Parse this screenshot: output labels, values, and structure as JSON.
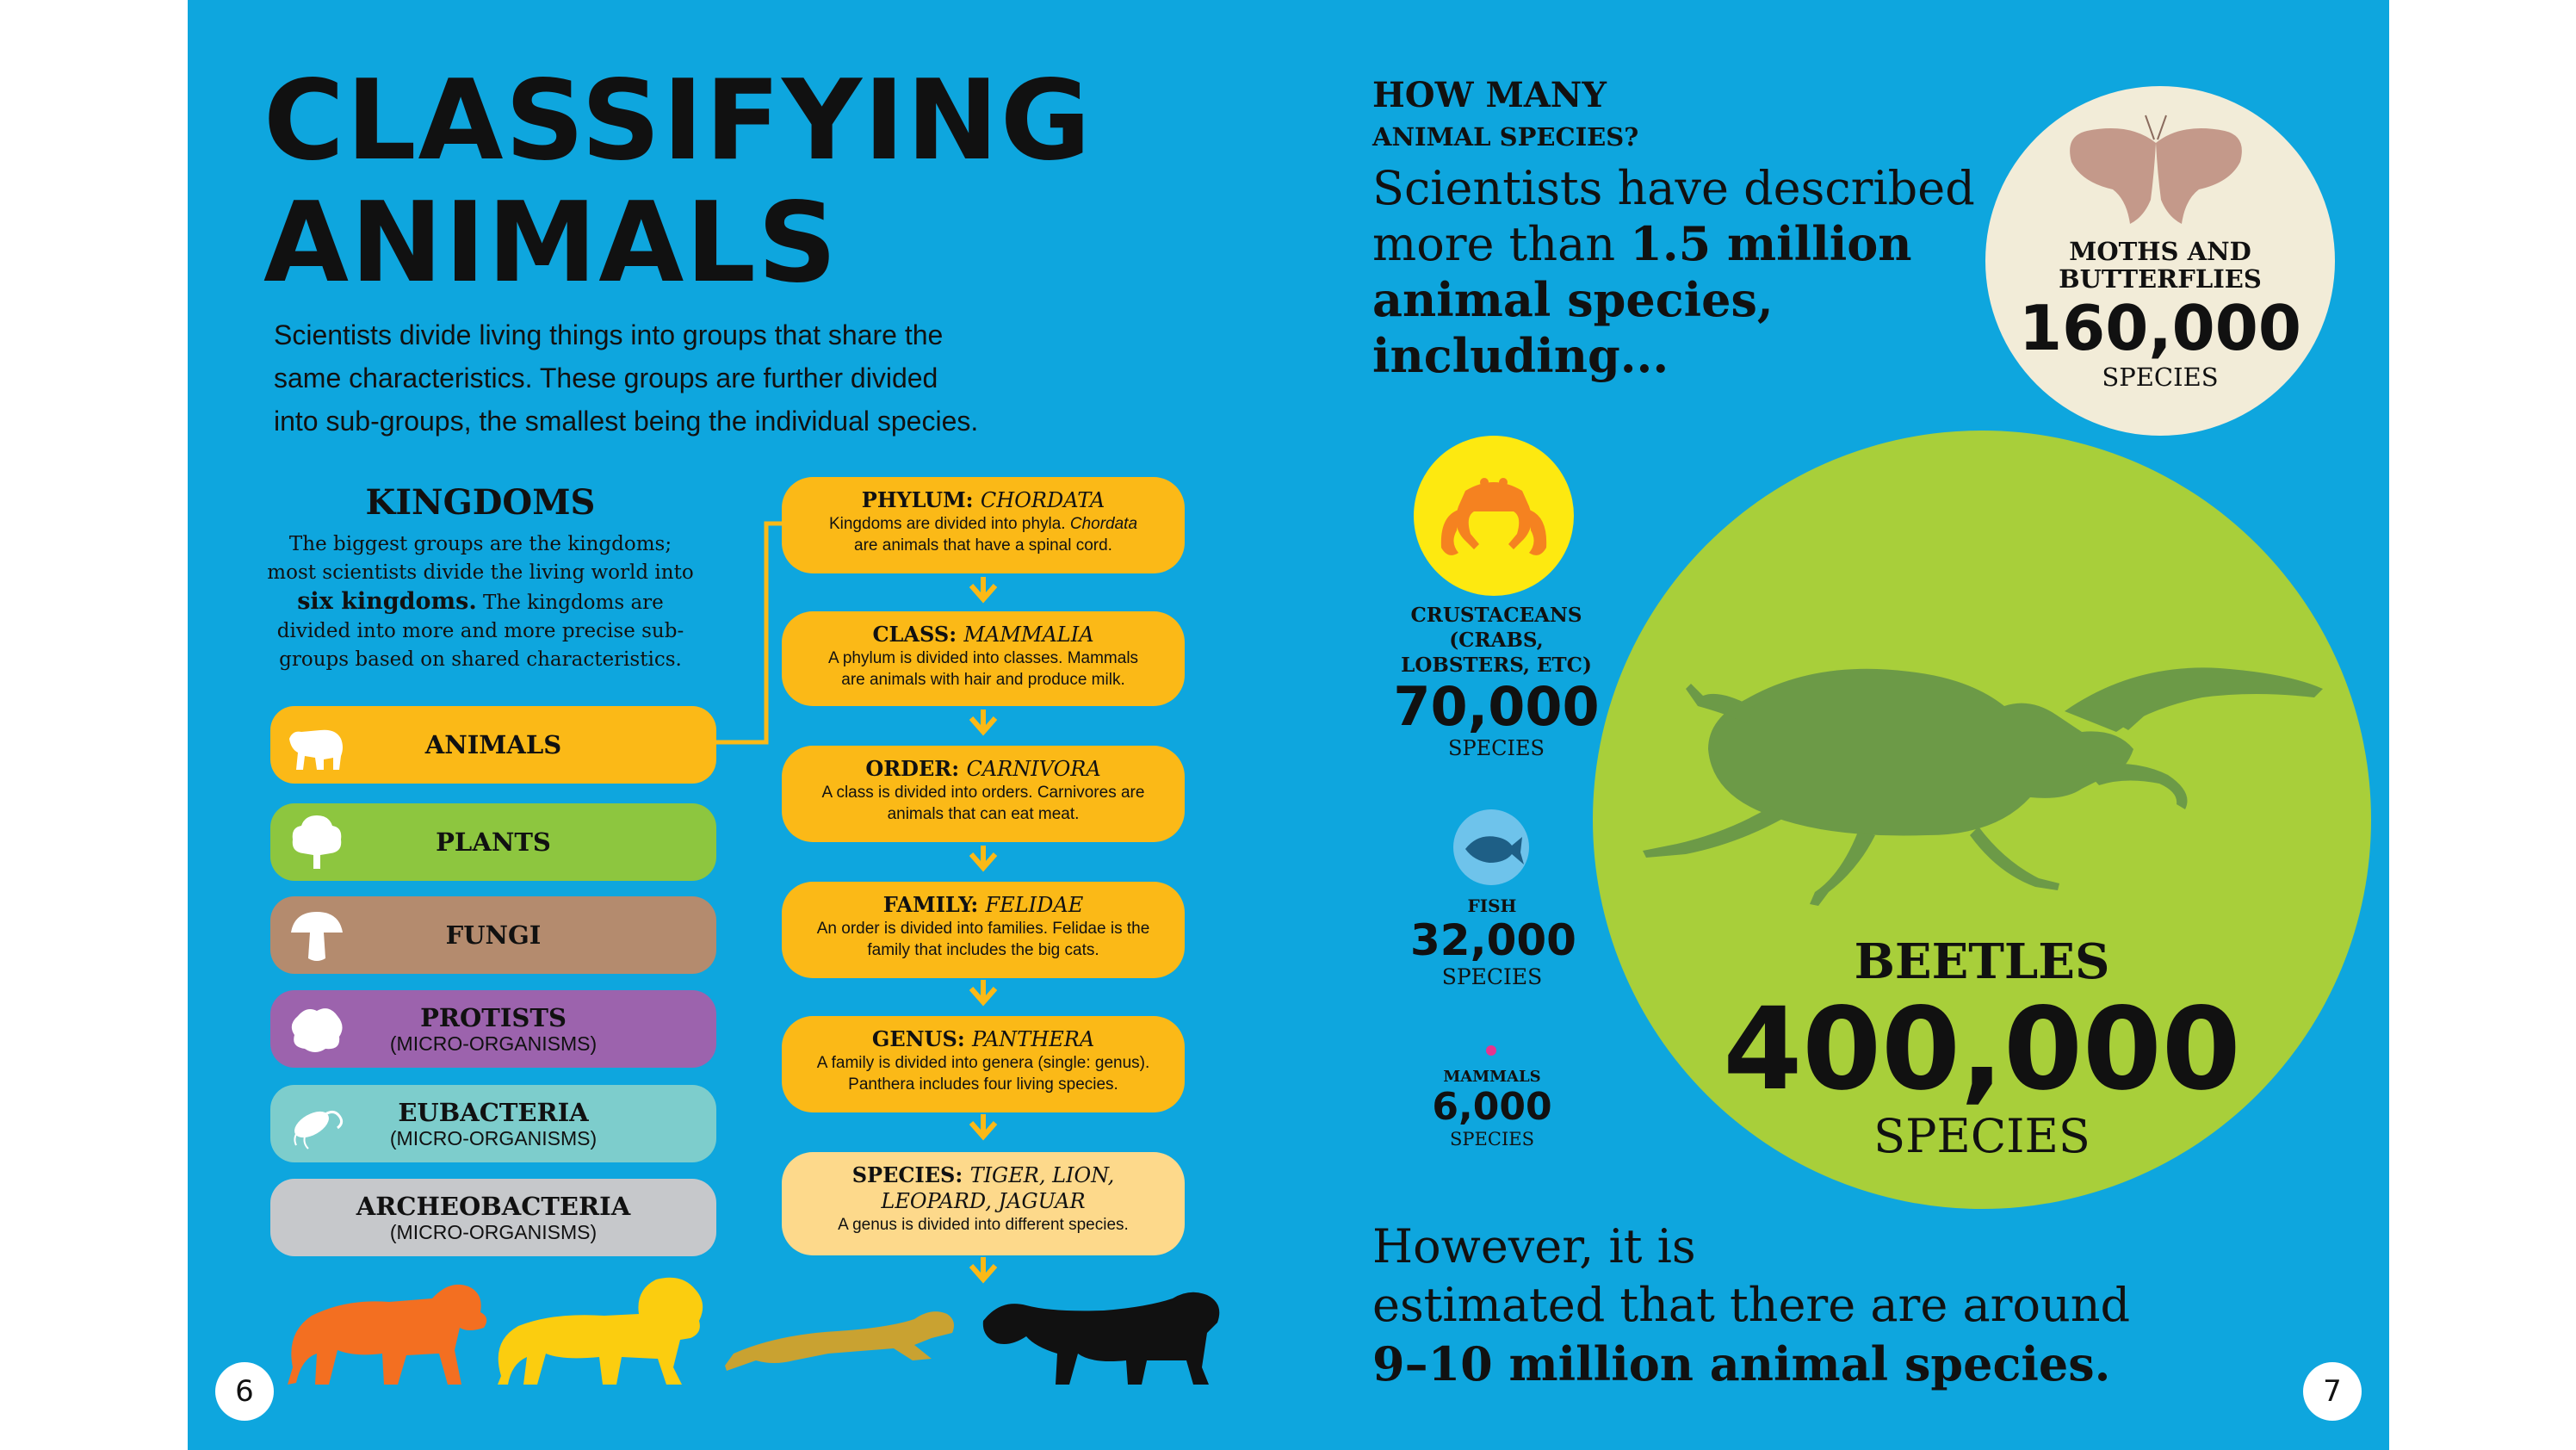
{
  "left_page": {
    "title_line1": "CLASSIFYING",
    "title_line2": "ANIMALS",
    "intro_line1": "Scientists divide living things into groups that share the",
    "intro_line2": "same characteristics. These groups are further divided",
    "intro_line3": "into sub-groups, the smallest being the individual species.",
    "kingdoms_title": "KINGDOMS",
    "kingdoms_text_1": "The biggest groups are the kingdoms;",
    "kingdoms_text_2": "most scientists divide the living world into",
    "kingdoms_bold": "six kingdoms.",
    "kingdoms_text_3": " The kingdoms are",
    "kingdoms_text_4": "divided into more and more precise sub-",
    "kingdoms_text_5": "groups based on shared characteristics.",
    "kingdoms": [
      {
        "label": "ANIMALS",
        "sub": "",
        "color": "#fbb917",
        "icon": "polar-bear-icon"
      },
      {
        "label": "PLANTS",
        "sub": "",
        "color": "#8dc63f",
        "icon": "tree-icon"
      },
      {
        "label": "FUNGI",
        "sub": "",
        "color": "#b48b6e",
        "icon": "mushroom-icon"
      },
      {
        "label": "PROTISTS",
        "sub": "(MICRO-ORGANISMS)",
        "color": "#9c63ad",
        "icon": "amoeba-icon"
      },
      {
        "label": "EUBACTERIA",
        "sub": "(MICRO-ORGANISMS)",
        "color": "#7dcdcc",
        "icon": "bacterium-icon"
      },
      {
        "label": "ARCHEOBACTERIA",
        "sub": "(MICRO-ORGANISMS)",
        "color": "#c6c8cb",
        "icon": ""
      }
    ],
    "chain": [
      {
        "head": "PHYLUM: ",
        "head_it": "CHORDATA",
        "d1": "Kingdoms are divided into phyla. ",
        "d1_it": "Chordata",
        "d2": "are animals that have a spinal cord."
      },
      {
        "head": "CLASS: ",
        "head_it": "MAMMALIA",
        "d1": "A phylum is divided into classes. Mammals",
        "d1_it": "",
        "d2": "are animals with hair and produce milk."
      },
      {
        "head": "ORDER: ",
        "head_it": "CARNIVORA",
        "d1": "A class is divided into orders. Carnivores are",
        "d1_it": "",
        "d2": "animals that can eat meat."
      },
      {
        "head": "FAMILY: ",
        "head_it": "FELIDAE",
        "d1": "An order is divided into families. Felidae is the",
        "d1_it": "",
        "d2": "family that includes the big cats."
      },
      {
        "head": "GENUS: ",
        "head_it": "PANTHERA",
        "d1": "A family is divided into genera (single: genus).",
        "d1_it": "",
        "d2": "Panthera includes four living species."
      },
      {
        "head": "SPECIES: ",
        "head_it": "TIGER, LION,",
        "head_it2": "LEOPARD, JAGUAR",
        "d1": "A genus is divided into different species.",
        "d1_it": "",
        "d2": ""
      }
    ],
    "page_number": "6"
  },
  "right_page": {
    "heading_1": "HOW MANY",
    "heading_2": "ANIMAL SPECIES?",
    "lead_1": "Scientists have described",
    "lead_2": "more than ",
    "lead_2_bold": "1.5 million",
    "lead_3_bold": "animal species,",
    "lead_4_bold": "including...",
    "moths": {
      "label_1": "MOTHS AND",
      "label_2": "BUTTERFLIES",
      "count": "160,000",
      "unit": "SPECIES"
    },
    "crustaceans": {
      "label_1": "CRUSTACEANS",
      "label_2": "(CRABS,",
      "label_3": "LOBSTERS, ETC)",
      "count": "70,000",
      "unit": "SPECIES"
    },
    "fish": {
      "label": "FISH",
      "count": "32,000",
      "unit": "SPECIES"
    },
    "mammals": {
      "label": "MAMMALS",
      "count": "6,000",
      "unit": "SPECIES"
    },
    "beetles": {
      "label": "BEETLES",
      "count": "400,000",
      "unit": "SPECIES"
    },
    "closing_1": "However, it is",
    "closing_2": "estimated that there are around",
    "closing_3_bold": "9–10 million animal species.",
    "page_number": "7"
  },
  "colors": {
    "background": "#0ea6de",
    "accent_yellow": "#fbb917",
    "beetle_circle": "#a8cf3a",
    "beetle": "#6c9a47",
    "moth_circle": "#f2ecd8"
  }
}
